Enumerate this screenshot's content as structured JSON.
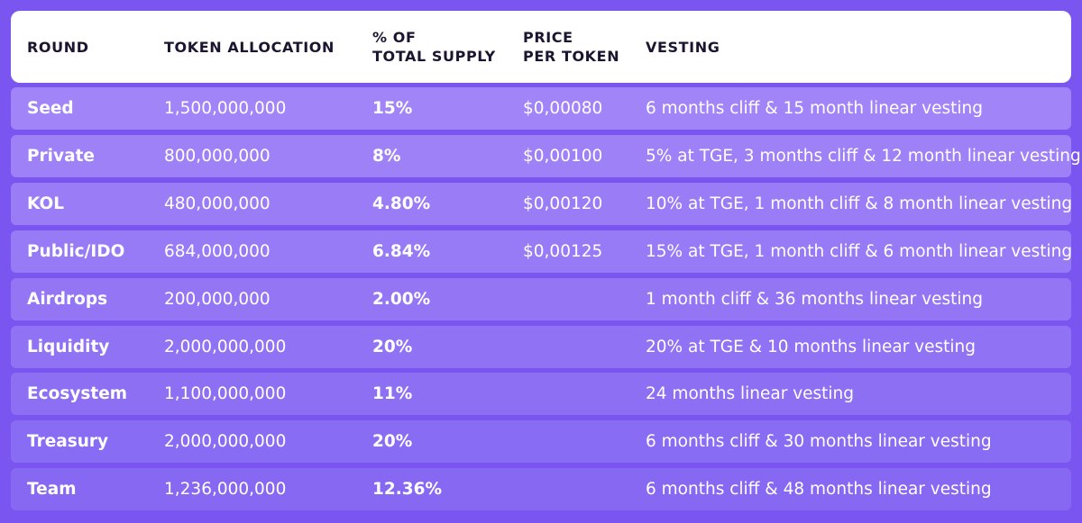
{
  "table": {
    "header": [
      [
        "ROUND"
      ],
      [
        "TOKEN ALLOCATION"
      ],
      [
        "% OF",
        "TOTAL SUPPLY"
      ],
      [
        "PRICE",
        "PER TOKEN"
      ],
      [
        "VESTING"
      ]
    ],
    "rows": [
      [
        "Seed",
        "1,500,000,000",
        "15%",
        "$0,00080",
        "6 months cliff & 15 month linear vesting"
      ],
      [
        "Private",
        "800,000,000",
        "8%",
        "$0,00100",
        "5% at TGE, 3 months cliff & 12 month linear vesting"
      ],
      [
        "KOL",
        "480,000,000",
        "4.80%",
        "$0,00120",
        "10% at TGE, 1 month cliff & 8 month linear vesting"
      ],
      [
        "Public/IDO",
        "684,000,000",
        "6.84%",
        "$0,00125",
        "15% at TGE, 1 month cliff & 6 month linear vesting"
      ],
      [
        "Airdrops",
        "200,000,000",
        "2.00%",
        null,
        "1 month cliff & 36 months linear vesting"
      ],
      [
        "Liquidity",
        "2,000,000,000",
        "20%",
        null,
        "20% at TGE & 10 months linear vesting"
      ],
      [
        "Ecosystem",
        "1,100,000,000",
        "11%",
        null,
        "24 months linear vesting"
      ],
      [
        "Treasury",
        "2,000,000,000",
        "20%",
        null,
        "6 months cliff & 30 months linear vesting"
      ],
      [
        "Team",
        "1,236,000,000",
        "12.36%",
        null,
        "6 months cliff & 48 months linear vesting"
      ]
    ]
  }
}
